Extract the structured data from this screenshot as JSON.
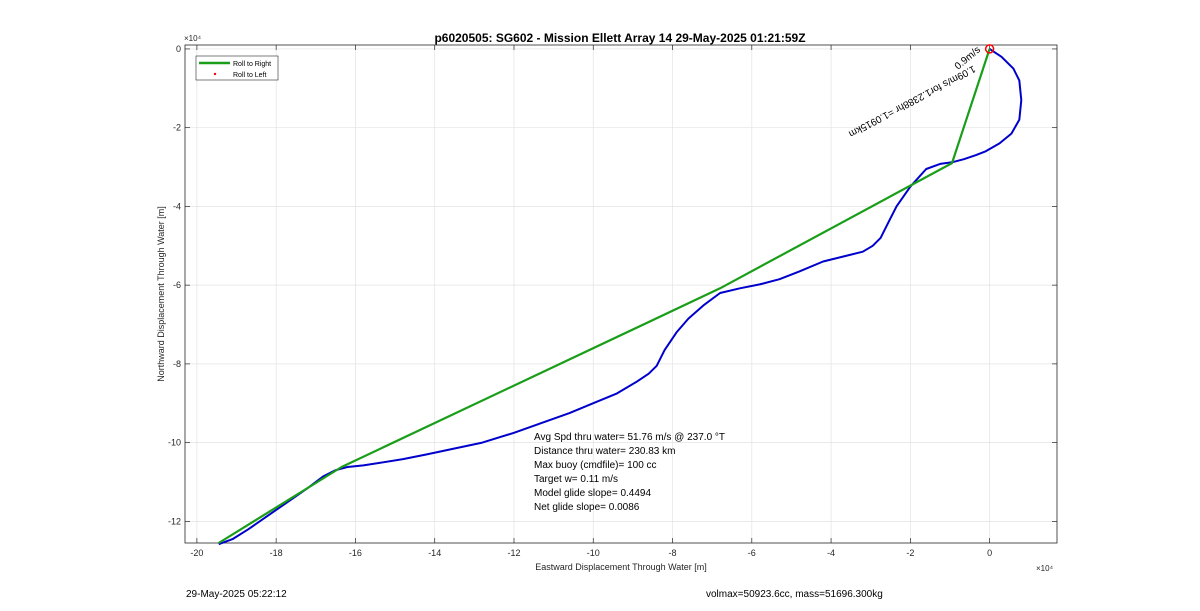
{
  "footer": {
    "left": "29-May-2025 05:22:12",
    "right": "volmax=50923.6cc, mass=51696.300kg"
  },
  "chart_data": {
    "type": "line",
    "title": "p6020505: SG602 - Mission Ellett Array 14 29-May-2025 01:21:59Z",
    "xlabel": "Eastward Displacement Through Water [m]",
    "ylabel": "Northward Displacement Through Water [m]",
    "x_exponent_label": "×10⁴",
    "y_exponent_label": "×10⁴",
    "xlim": [
      -20.3,
      1.7
    ],
    "ylim": [
      -12.55,
      0.1
    ],
    "x_ticks": [
      -20,
      -18,
      -16,
      -14,
      -12,
      -10,
      -8,
      -6,
      -4,
      -2,
      0
    ],
    "y_ticks": [
      -12,
      -10,
      -8,
      -6,
      -4,
      -2,
      0
    ],
    "grid": true,
    "legend": {
      "placement": "top-left",
      "entries": [
        "Roll to Right",
        "Roll to Left"
      ]
    },
    "colors": {
      "track": "#0000cc",
      "roll_right": "#1a9e1a",
      "roll_left": "#ff0000",
      "marker": "#ff0000"
    },
    "series": [
      {
        "name": "Roll to Right",
        "style": "line",
        "x": [
          0.0,
          -0.95,
          -6.8,
          -16.35,
          -19.45
        ],
        "y": [
          0.0,
          -2.9,
          -6.08,
          -10.62,
          -12.55
        ]
      },
      {
        "name": "Roll to Left",
        "style": "dot",
        "x": [],
        "y": []
      }
    ],
    "track": {
      "x": [
        0.0,
        0.3,
        0.6,
        0.75,
        0.8,
        0.75,
        0.55,
        0.25,
        -0.1,
        -0.35,
        -0.65,
        -0.95,
        -1.25,
        -1.6,
        -2.0,
        -2.35,
        -2.55,
        -2.75,
        -2.95,
        -3.2,
        -3.6,
        -4.2,
        -4.8,
        -5.3,
        -5.8,
        -6.3,
        -6.8,
        -7.2,
        -7.6,
        -7.9,
        -8.2,
        -8.4,
        -8.6,
        -8.9,
        -9.4,
        -10.0,
        -10.6,
        -11.3,
        -12.0,
        -12.8,
        -13.5,
        -14.2,
        -14.8,
        -15.3,
        -15.8,
        -16.2,
        -16.5,
        -16.8,
        -17.2,
        -17.7,
        -18.2,
        -18.7,
        -19.1,
        -19.45
      ],
      "y": [
        0.0,
        -0.2,
        -0.5,
        -0.8,
        -1.3,
        -1.8,
        -2.15,
        -2.4,
        -2.6,
        -2.7,
        -2.8,
        -2.88,
        -2.92,
        -3.05,
        -3.5,
        -4.0,
        -4.4,
        -4.8,
        -5.0,
        -5.15,
        -5.25,
        -5.4,
        -5.65,
        -5.85,
        -5.98,
        -6.08,
        -6.2,
        -6.5,
        -6.85,
        -7.2,
        -7.65,
        -8.05,
        -8.25,
        -8.45,
        -8.75,
        -9.0,
        -9.25,
        -9.5,
        -9.75,
        -10.0,
        -10.15,
        -10.3,
        -10.42,
        -10.5,
        -10.58,
        -10.62,
        -10.7,
        -10.85,
        -11.15,
        -11.5,
        -11.85,
        -12.2,
        -12.45,
        -12.58
      ]
    },
    "markers": [
      {
        "name": "start",
        "x": 0.0,
        "y": 0.0,
        "shape": "circle"
      }
    ],
    "annotations": {
      "rotated_label": "1.09m/s for1.2388hr =1.0915km",
      "rotated_label_overlay": "0.9m/s",
      "stats": [
        "Avg Spd thru water= 51.76 m/s @ 237.0 °T",
        "Distance thru water= 230.83 km",
        "Max buoy (cmdfile)= 100 cc",
        "Target w= 0.11 m/s",
        "Model glide slope= 0.4494",
        "Net glide slope= 0.0086"
      ]
    }
  }
}
